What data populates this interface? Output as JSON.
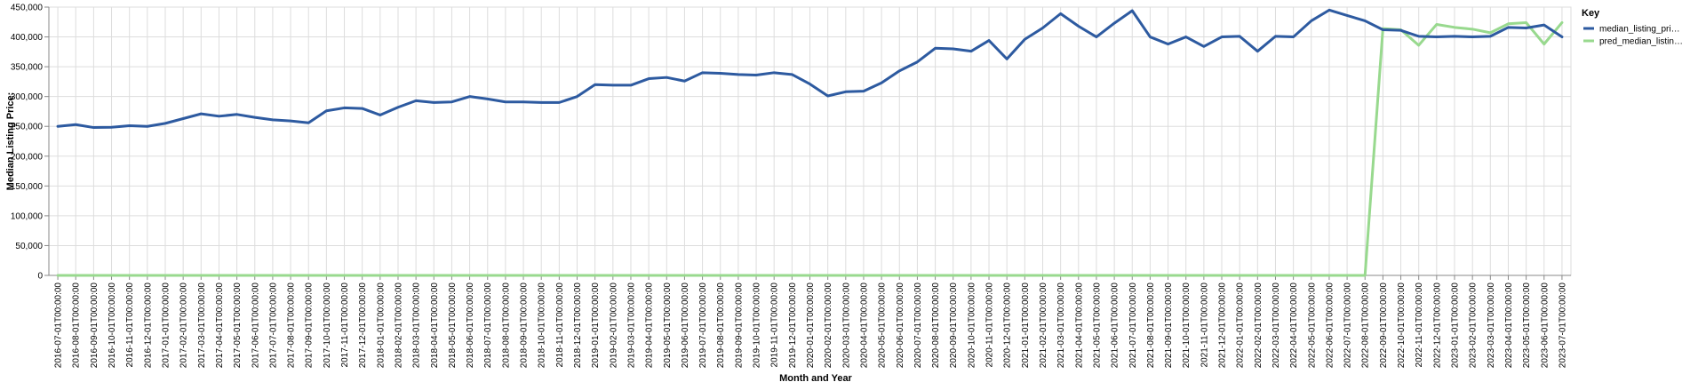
{
  "chart_data": {
    "type": "line",
    "xlabel": "Month and Year",
    "ylabel": "Median Listing Price:",
    "ylim": [
      0,
      450000
    ],
    "yticks": [
      0,
      50000,
      100000,
      150000,
      200000,
      250000,
      300000,
      350000,
      400000,
      450000
    ],
    "ytick_labels": [
      "0",
      "50,000",
      "100,000",
      "150,000",
      "200,000",
      "250,000",
      "300,000",
      "350,000",
      "400,000",
      "450,000"
    ],
    "grid": true,
    "legend": {
      "title": "Key",
      "placement": "right",
      "entries": [
        "median_listing_pri…",
        "pred_median_listin…"
      ]
    },
    "x": [
      "2016-07-01T00:00:00",
      "2016-08-01T00:00:00",
      "2016-09-01T00:00:00",
      "2016-10-01T00:00:00",
      "2016-11-01T00:00:00",
      "2016-12-01T00:00:00",
      "2017-01-01T00:00:00",
      "2017-02-01T00:00:00",
      "2017-03-01T00:00:00",
      "2017-04-01T00:00:00",
      "2017-05-01T00:00:00",
      "2017-06-01T00:00:00",
      "2017-07-01T00:00:00",
      "2017-08-01T00:00:00",
      "2017-09-01T00:00:00",
      "2017-10-01T00:00:00",
      "2017-11-01T00:00:00",
      "2017-12-01T00:00:00",
      "2018-01-01T00:00:00",
      "2018-02-01T00:00:00",
      "2018-03-01T00:00:00",
      "2018-04-01T00:00:00",
      "2018-05-01T00:00:00",
      "2018-06-01T00:00:00",
      "2018-07-01T00:00:00",
      "2018-08-01T00:00:00",
      "2018-09-01T00:00:00",
      "2018-10-01T00:00:00",
      "2018-11-01T00:00:00",
      "2018-12-01T00:00:00",
      "2019-01-01T00:00:00",
      "2019-02-01T00:00:00",
      "2019-03-01T00:00:00",
      "2019-04-01T00:00:00",
      "2019-05-01T00:00:00",
      "2019-06-01T00:00:00",
      "2019-07-01T00:00:00",
      "2019-08-01T00:00:00",
      "2019-09-01T00:00:00",
      "2019-10-01T00:00:00",
      "2019-11-01T00:00:00",
      "2019-12-01T00:00:00",
      "2020-01-01T00:00:00",
      "2020-02-01T00:00:00",
      "2020-03-01T00:00:00",
      "2020-04-01T00:00:00",
      "2020-05-01T00:00:00",
      "2020-06-01T00:00:00",
      "2020-07-01T00:00:00",
      "2020-08-01T00:00:00",
      "2020-09-01T00:00:00",
      "2020-10-01T00:00:00",
      "2020-11-01T00:00:00",
      "2020-12-01T00:00:00",
      "2021-01-01T00:00:00",
      "2021-02-01T00:00:00",
      "2021-03-01T00:00:00",
      "2021-04-01T00:00:00",
      "2021-05-01T00:00:00",
      "2021-06-01T00:00:00",
      "2021-07-01T00:00:00",
      "2021-08-01T00:00:00",
      "2021-09-01T00:00:00",
      "2021-10-01T00:00:00",
      "2021-11-01T00:00:00",
      "2021-12-01T00:00:00",
      "2022-01-01T00:00:00",
      "2022-02-01T00:00:00",
      "2022-03-01T00:00:00",
      "2022-04-01T00:00:00",
      "2022-05-01T00:00:00",
      "2022-06-01T00:00:00",
      "2022-07-01T00:00:00",
      "2022-08-01T00:00:00",
      "2022-09-01T00:00:00",
      "2022-10-01T00:00:00",
      "2022-11-01T00:00:00",
      "2022-12-01T00:00:00",
      "2023-01-01T00:00:00",
      "2023-02-01T00:00:00",
      "2023-03-01T00:00:00",
      "2023-04-01T00:00:00",
      "2023-05-01T00:00:00",
      "2023-06-01T00:00:00",
      "2023-07-01T00:00:00"
    ],
    "series": [
      {
        "name": "median_listing_pri…",
        "color": "#2d5aa0",
        "values": [
          250000,
          253000,
          248000,
          248500,
          251000,
          250000,
          255000,
          263000,
          271000,
          267000,
          270000,
          265000,
          261000,
          259000,
          256000,
          276000,
          281000,
          280000,
          269000,
          282000,
          293000,
          290000,
          291000,
          300000,
          296000,
          291000,
          291000,
          290000,
          290000,
          300000,
          320000,
          319000,
          319000,
          330000,
          332000,
          326000,
          340000,
          339000,
          337000,
          336000,
          340000,
          337000,
          321000,
          301000,
          308000,
          309000,
          323000,
          343000,
          358000,
          381000,
          380000,
          376000,
          394000,
          363000,
          396000,
          415000,
          439000,
          418000,
          400000,
          423000,
          444000,
          400000,
          388000,
          400000,
          384000,
          400000,
          401000,
          376000,
          401000,
          400000,
          427000,
          445000,
          436000,
          427000,
          412000,
          411000,
          401000,
          400000,
          401000,
          400000,
          401000,
          416000,
          415000,
          420000,
          400000
        ]
      },
      {
        "name": "pred_median_listin…",
        "color": "#98d98e",
        "values": [
          0,
          0,
          0,
          0,
          0,
          0,
          0,
          0,
          0,
          0,
          0,
          0,
          0,
          0,
          0,
          0,
          0,
          0,
          0,
          0,
          0,
          0,
          0,
          0,
          0,
          0,
          0,
          0,
          0,
          0,
          0,
          0,
          0,
          0,
          0,
          0,
          0,
          0,
          0,
          0,
          0,
          0,
          0,
          0,
          0,
          0,
          0,
          0,
          0,
          0,
          0,
          0,
          0,
          0,
          0,
          0,
          0,
          0,
          0,
          0,
          0,
          0,
          0,
          0,
          0,
          0,
          0,
          0,
          0,
          0,
          0,
          0,
          0,
          0,
          414000,
          412000,
          386000,
          421000,
          416000,
          413000,
          407000,
          422000,
          424000,
          388000,
          424000
        ]
      }
    ]
  }
}
